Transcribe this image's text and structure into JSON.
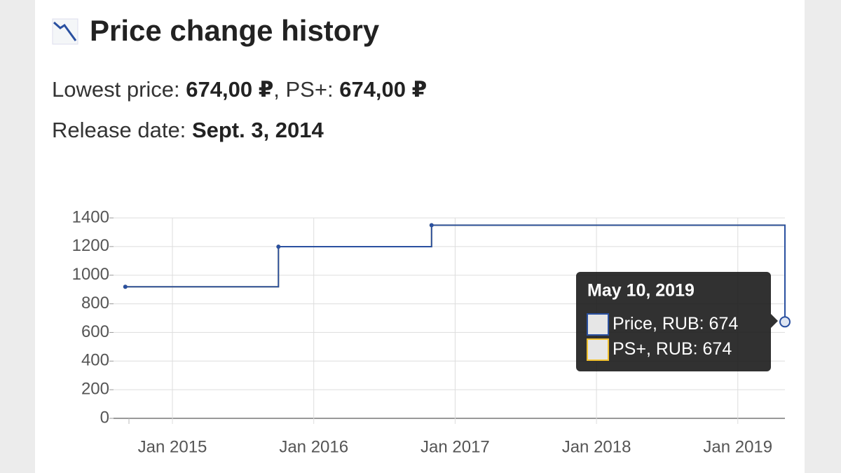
{
  "header": {
    "title": "Price change history"
  },
  "info": {
    "lowest_price_label": "Lowest price:",
    "lowest_price": "674,00 ₽",
    "ps_plus_label": "PS+:",
    "ps_plus_price": "674,00 ₽",
    "release_label": "Release date:",
    "release_date": "Sept. 3, 2014"
  },
  "chart_data": {
    "type": "line",
    "step": true,
    "x": [
      "2014-09",
      "2015-10",
      "2016-11",
      "2019-05"
    ],
    "series": [
      {
        "name": "Price, RUB",
        "color": "#2a50a0",
        "values": [
          919,
          1199,
          1349,
          674
        ]
      },
      {
        "name": "PS+, RUB",
        "color": "#f2c230",
        "values": [
          919,
          1199,
          1349,
          674
        ]
      }
    ],
    "xlim": [
      "2014-08",
      "2019-05"
    ],
    "xticks": [
      {
        "value": "2015-01",
        "label": "Jan 2015"
      },
      {
        "value": "2016-01",
        "label": "Jan 2016"
      },
      {
        "value": "2017-01",
        "label": "Jan 2017"
      },
      {
        "value": "2018-01",
        "label": "Jan 2018"
      },
      {
        "value": "2019-01",
        "label": "Jan 2019"
      }
    ],
    "ylim": [
      0,
      1400
    ],
    "yticks": [
      0,
      200,
      400,
      600,
      800,
      1000,
      1200,
      1400
    ],
    "grid": true,
    "tooltip": {
      "title": "May 10, 2019",
      "index": 3
    }
  }
}
